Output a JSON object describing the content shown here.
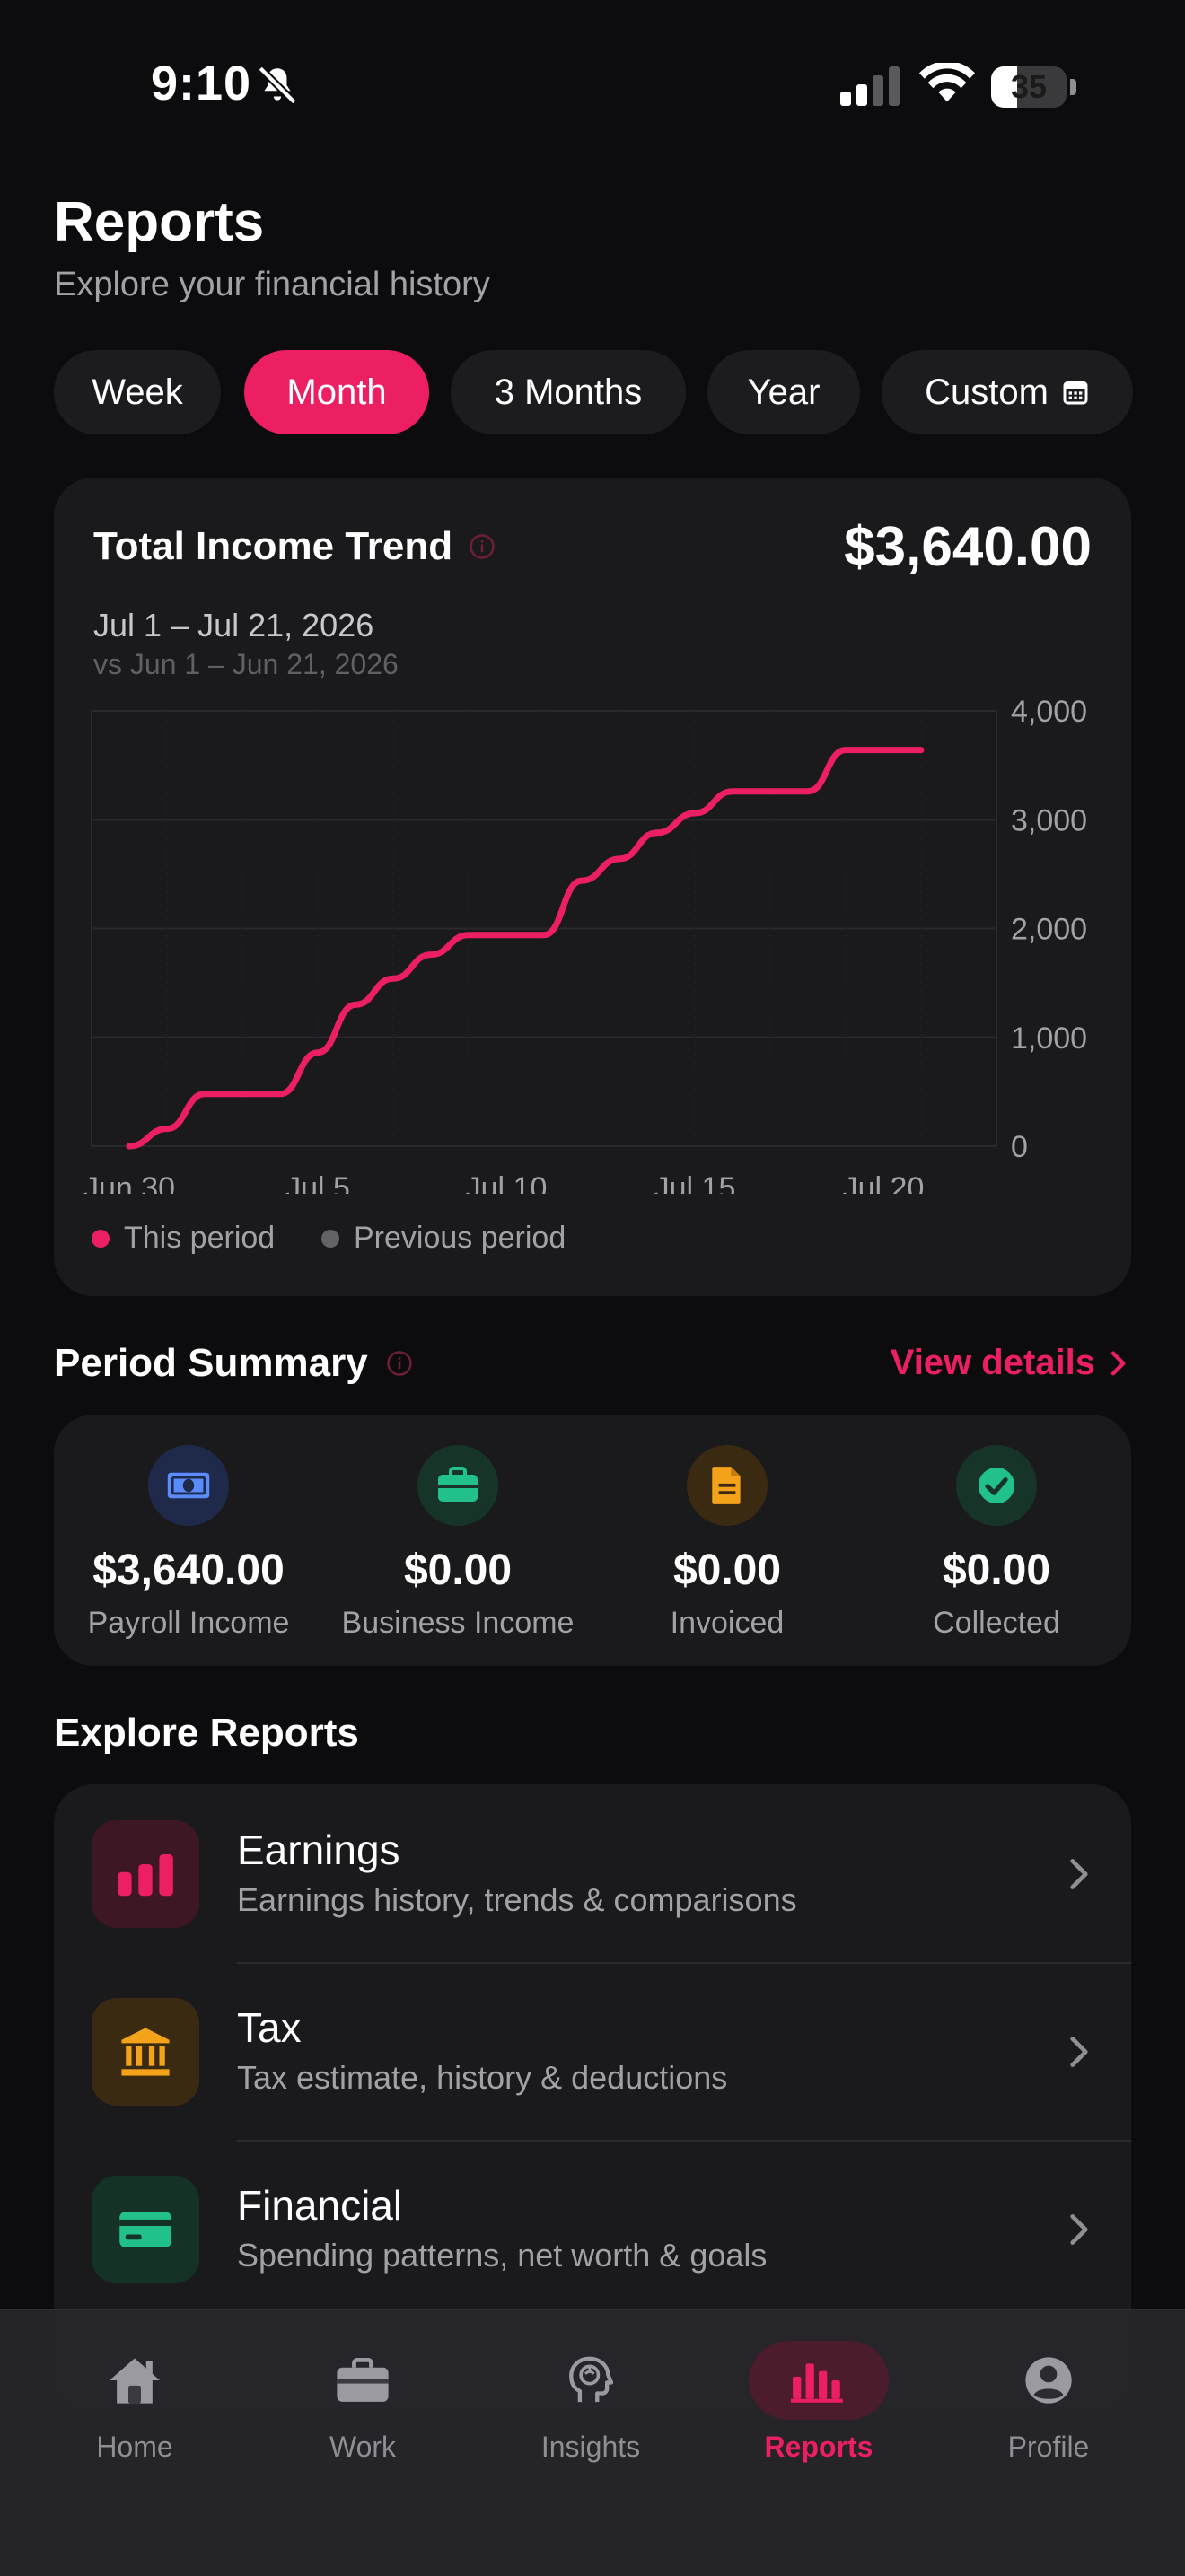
{
  "status_bar": {
    "time": "9:10",
    "battery": "35",
    "battery_level": 0.35
  },
  "header": {
    "title": "Reports",
    "subtitle": "Explore your financial history"
  },
  "period_tabs": [
    {
      "label": "Week",
      "active": false
    },
    {
      "label": "Month",
      "active": true
    },
    {
      "label": "3 Months",
      "active": false
    },
    {
      "label": "Year",
      "active": false
    },
    {
      "label": "Custom",
      "active": false,
      "icon": "calendar-icon"
    }
  ],
  "trend": {
    "title": "Total Income Trend",
    "total": "$3,640.00",
    "range": "Jul 1 – Jul 21, 2026",
    "compare": "vs Jun 1 – Jun 21, 2026",
    "legend": [
      {
        "label": "This period",
        "color": "#ec1f62"
      },
      {
        "label": "Previous period",
        "color": "#636366"
      }
    ]
  },
  "chart_data": {
    "type": "line",
    "x_tick_labels": [
      "Jun 30",
      "Jul 5",
      "Jul 10",
      "Jul 15",
      "Jul 20"
    ],
    "y_tick_labels": [
      "4,000",
      "3,000",
      "2,000",
      "1,000",
      "0"
    ],
    "ylim": [
      0,
      4000
    ],
    "xlim": [
      "Jun 29",
      "Jul 23"
    ],
    "grid": true,
    "legend_position": "bottom-left",
    "series": [
      {
        "name": "This period",
        "color": "#ec1f62",
        "x": [
          "Jun 30",
          "Jul 1",
          "Jul 2",
          "Jul 3",
          "Jul 4",
          "Jul 5",
          "Jul 6",
          "Jul 7",
          "Jul 8",
          "Jul 9",
          "Jul 10",
          "Jul 11",
          "Jul 12",
          "Jul 13",
          "Jul 14",
          "Jul 15",
          "Jul 16",
          "Jul 17",
          "Jul 18",
          "Jul 19",
          "Jul 20",
          "Jul 21"
        ],
        "values": [
          0,
          160,
          480,
          480,
          480,
          860,
          1300,
          1540,
          1760,
          1940,
          1940,
          1940,
          2440,
          2640,
          2880,
          3060,
          3260,
          3260,
          3260,
          3640,
          3640,
          3640
        ]
      }
    ]
  },
  "summary": {
    "title": "Period Summary",
    "view_details": "View details",
    "items": [
      {
        "value": "$3,640.00",
        "label": "Payroll Income",
        "icon": "cash-icon",
        "color": "#5b8cff",
        "bg": "#1f2a4a"
      },
      {
        "value": "$0.00",
        "label": "Business Income",
        "icon": "briefcase-icon",
        "color": "#22c08a",
        "bg": "#163428"
      },
      {
        "value": "$0.00",
        "label": "Invoiced",
        "icon": "document-icon",
        "color": "#f5a21b",
        "bg": "#3a2a12"
      },
      {
        "value": "$0.00",
        "label": "Collected",
        "icon": "check-circle-icon",
        "color": "#22c08a",
        "bg": "#163428"
      }
    ]
  },
  "explore": {
    "title": "Explore Reports",
    "items": [
      {
        "title": "Earnings",
        "desc": "Earnings history, trends & comparisons",
        "icon": "bar-chart-icon",
        "color": "#ec1f62",
        "bg": "#3e1724"
      },
      {
        "title": "Tax",
        "desc": "Tax estimate, history & deductions",
        "icon": "bank-icon",
        "color": "#f5a21b",
        "bg": "#3a2a12"
      },
      {
        "title": "Financial",
        "desc": "Spending patterns, net worth & goals",
        "icon": "card-icon",
        "color": "#22c08a",
        "bg": "#143226"
      }
    ]
  },
  "nav": [
    {
      "label": "Home",
      "icon": "home-icon",
      "active": false
    },
    {
      "label": "Work",
      "icon": "briefcase-icon",
      "active": false
    },
    {
      "label": "Insights",
      "icon": "brain-icon",
      "active": false
    },
    {
      "label": "Reports",
      "icon": "bar-chart-icon",
      "active": true
    },
    {
      "label": "Profile",
      "icon": "profile-icon",
      "active": false
    }
  ]
}
